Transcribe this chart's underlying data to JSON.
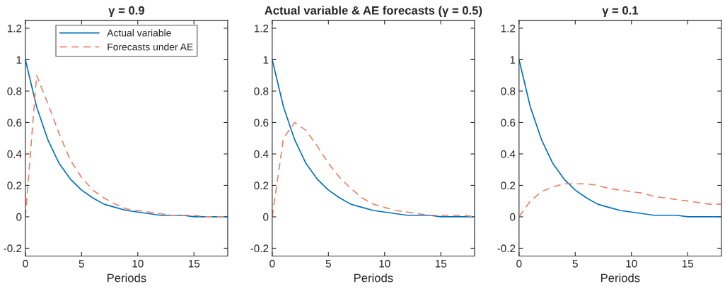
{
  "chart_data": [
    {
      "type": "line",
      "title": "γ = 0.9",
      "xlabel": "Periods",
      "x": [
        0,
        1,
        2,
        3,
        4,
        5,
        6,
        7,
        8,
        9,
        10,
        11,
        12,
        13,
        14,
        15,
        16,
        17,
        18
      ],
      "xlim": [
        0,
        18
      ],
      "xticks": [
        0,
        5,
        10,
        15
      ],
      "ylim": [
        -0.25,
        1.25
      ],
      "yticks": [
        -0.2,
        0,
        0.2,
        0.4,
        0.6,
        0.8,
        1,
        1.2
      ],
      "legend": "top",
      "grid": false,
      "series": [
        {
          "name": "Actual variable",
          "color": "#0072bd",
          "line_style": "solid",
          "values": [
            1,
            0.7,
            0.49,
            0.34,
            0.24,
            0.17,
            0.12,
            0.08,
            0.06,
            0.04,
            0.03,
            0.02,
            0.01,
            0.01,
            0.01,
            0.0,
            0.0,
            0.0,
            0.0
          ]
        },
        {
          "name": "Forecasts under AE",
          "color": "#e8826a",
          "line_style": "dashed",
          "values": [
            0,
            0.9,
            0.72,
            0.53,
            0.36,
            0.25,
            0.17,
            0.12,
            0.08,
            0.05,
            0.04,
            0.03,
            0.02,
            0.01,
            0.01,
            0.01,
            0.0,
            0.0,
            0.0
          ]
        }
      ]
    },
    {
      "type": "line",
      "title": "Actual variable & AE forecasts (γ = 0.5)",
      "xlabel": "Periods",
      "x": [
        0,
        1,
        2,
        3,
        4,
        5,
        6,
        7,
        8,
        9,
        10,
        11,
        12,
        13,
        14,
        15,
        16,
        17,
        18
      ],
      "xlim": [
        0,
        18
      ],
      "xticks": [
        0,
        5,
        10,
        15
      ],
      "ylim": [
        -0.25,
        1.25
      ],
      "yticks": [
        -0.2,
        0,
        0.2,
        0.4,
        0.6,
        0.8,
        1,
        1.2
      ],
      "grid": false,
      "series": [
        {
          "color": "#0072bd",
          "line_style": "solid",
          "values": [
            1,
            0.7,
            0.49,
            0.34,
            0.24,
            0.17,
            0.12,
            0.08,
            0.06,
            0.04,
            0.03,
            0.02,
            0.01,
            0.01,
            0.01,
            0.0,
            0.0,
            0.0,
            0.0
          ]
        },
        {
          "color": "#e8826a",
          "line_style": "dashed",
          "values": [
            0,
            0.5,
            0.6,
            0.55,
            0.45,
            0.34,
            0.25,
            0.18,
            0.12,
            0.08,
            0.06,
            0.04,
            0.03,
            0.02,
            0.01,
            0.01,
            0.01,
            0.01,
            0.0
          ]
        }
      ]
    },
    {
      "type": "line",
      "title": "γ = 0.1",
      "xlabel": "Periods",
      "x": [
        0,
        1,
        2,
        3,
        4,
        5,
        6,
        7,
        8,
        9,
        10,
        11,
        12,
        13,
        14,
        15,
        16,
        17,
        18
      ],
      "xlim": [
        0,
        18
      ],
      "xticks": [
        0,
        5,
        10,
        15
      ],
      "ylim": [
        -0.25,
        1.25
      ],
      "yticks": [
        -0.2,
        0,
        0.2,
        0.4,
        0.6,
        0.8,
        1,
        1.2
      ],
      "grid": false,
      "series": [
        {
          "color": "#0072bd",
          "line_style": "solid",
          "values": [
            1,
            0.7,
            0.49,
            0.34,
            0.24,
            0.17,
            0.12,
            0.08,
            0.06,
            0.04,
            0.03,
            0.02,
            0.01,
            0.01,
            0.01,
            0.0,
            0.0,
            0.0,
            0.0
          ]
        },
        {
          "color": "#e8826a",
          "line_style": "dashed",
          "values": [
            0,
            0.1,
            0.16,
            0.19,
            0.21,
            0.21,
            0.21,
            0.2,
            0.18,
            0.17,
            0.16,
            0.15,
            0.13,
            0.12,
            0.11,
            0.1,
            0.09,
            0.08,
            0.08
          ]
        }
      ]
    }
  ]
}
